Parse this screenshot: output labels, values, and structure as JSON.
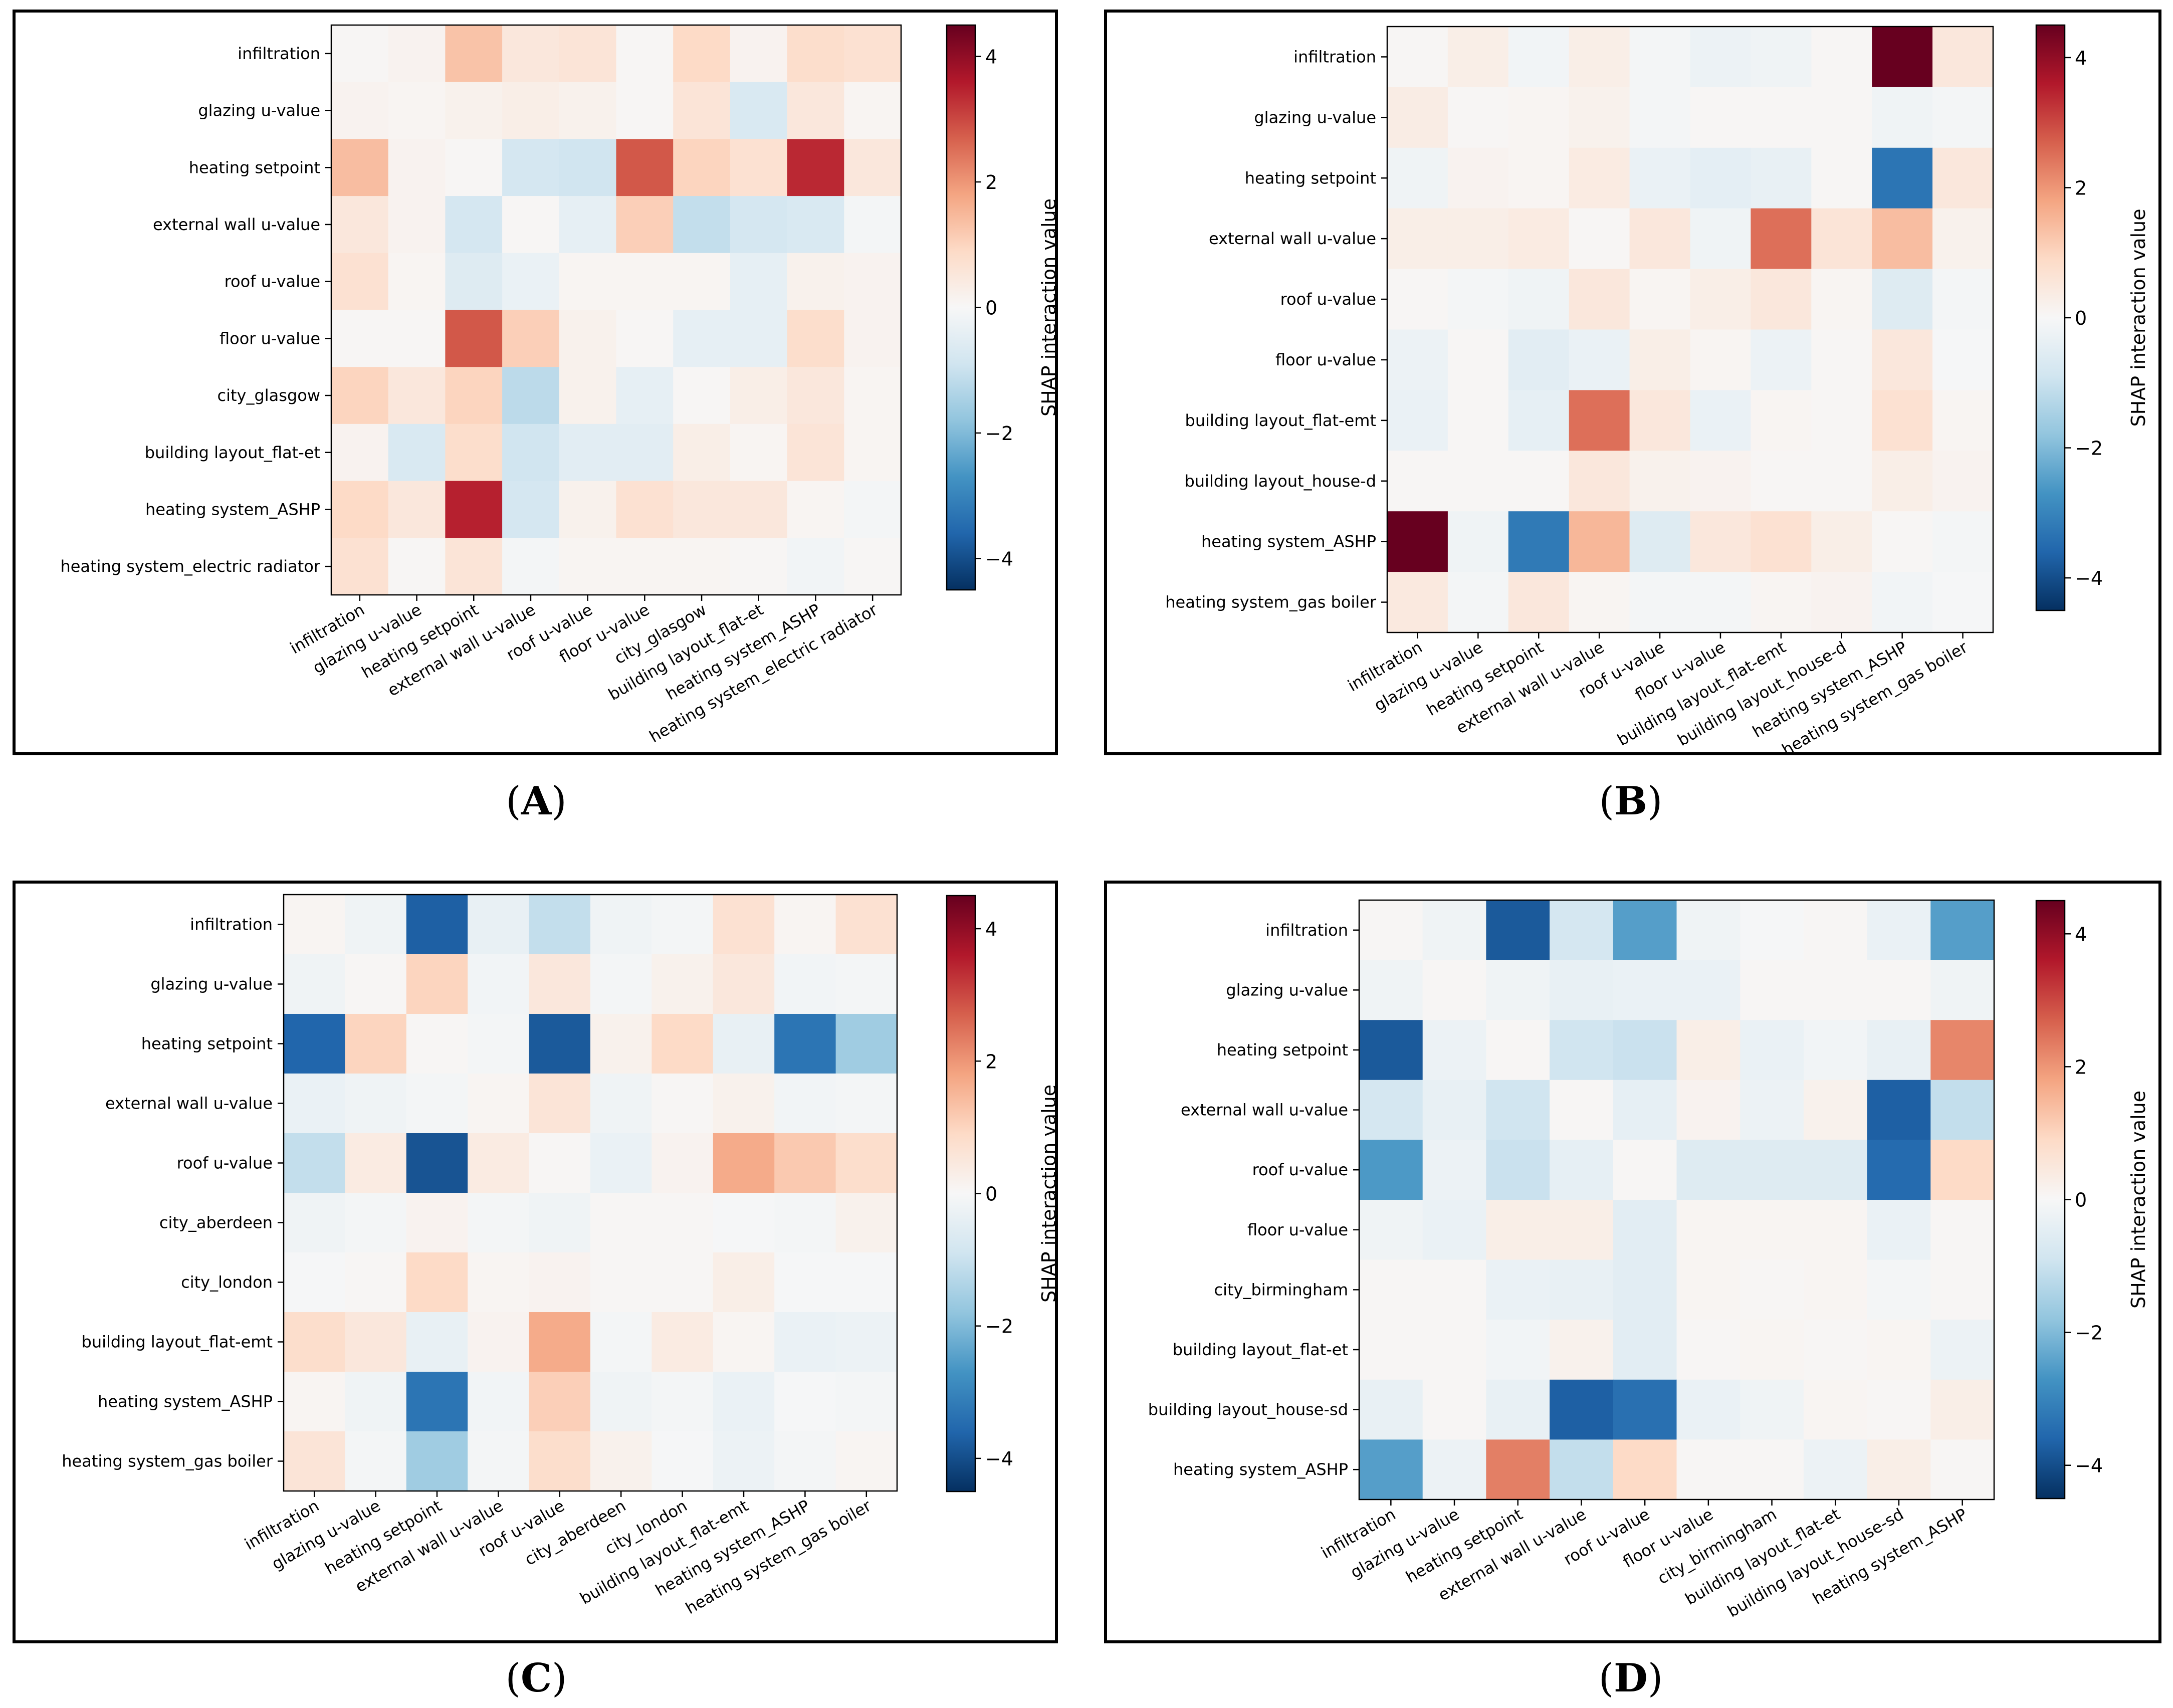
{
  "colorbar": {
    "label": "SHAP interaction value",
    "vmin": -4.5,
    "vmax": 4.5,
    "ticks": [
      -4,
      -2,
      0,
      2,
      4
    ],
    "tick_labels": [
      "−4",
      "−2",
      "0",
      "2",
      "4"
    ],
    "colormap": [
      "#053061",
      "#2166ac",
      "#4393c3",
      "#92c5de",
      "#d1e5f0",
      "#f7f7f7",
      "#fddbc7",
      "#f4a582",
      "#d6604d",
      "#b2182b",
      "#67001f"
    ]
  },
  "chart_data": [
    {
      "type": "heatmap",
      "panel_label": "A",
      "caption_parts": [
        "(",
        "A",
        ")"
      ],
      "features": [
        "infiltration",
        "glazing u-value",
        "heating setpoint",
        "external wall u-value",
        "roof u-value",
        "floor u-value",
        "city_glasgow",
        "building layout_flat-et",
        "heating system_ASHP",
        "heating system_electric radiator"
      ],
      "values": [
        [
          0.05,
          0.15,
          1.3,
          0.5,
          0.6,
          0.05,
          0.9,
          0.15,
          0.8,
          0.7
        ],
        [
          0.15,
          0.1,
          0.2,
          0.3,
          0.2,
          0.05,
          0.6,
          -0.7,
          0.5,
          0.1
        ],
        [
          1.4,
          0.15,
          0.05,
          -0.8,
          -0.9,
          2.8,
          1.0,
          0.7,
          3.4,
          0.5
        ],
        [
          0.5,
          0.15,
          -0.8,
          0.05,
          -0.4,
          1.1,
          -1.1,
          -0.8,
          -0.7,
          -0.1
        ],
        [
          0.7,
          0.1,
          -0.6,
          -0.3,
          0.1,
          0.1,
          0.1,
          -0.4,
          0.2,
          0.15
        ],
        [
          0.05,
          0.05,
          2.8,
          1.1,
          0.2,
          0.05,
          -0.4,
          -0.4,
          0.8,
          0.15
        ],
        [
          1.0,
          0.5,
          1.0,
          -1.2,
          0.2,
          -0.4,
          0.05,
          0.3,
          0.5,
          0.1
        ],
        [
          0.15,
          -0.7,
          0.8,
          -0.9,
          -0.5,
          -0.5,
          0.3,
          0.1,
          0.6,
          0.1
        ],
        [
          0.9,
          0.5,
          3.5,
          -0.8,
          0.2,
          0.7,
          0.5,
          0.5,
          0.1,
          -0.1
        ],
        [
          0.7,
          0.05,
          0.6,
          -0.1,
          0.1,
          0.1,
          0.1,
          0.05,
          -0.15,
          0.05
        ]
      ]
    },
    {
      "type": "heatmap",
      "panel_label": "B",
      "caption_parts": [
        "(",
        "B",
        ")"
      ],
      "features": [
        "infiltration",
        "glazing u-value",
        "heating setpoint",
        "external wall u-value",
        "roof u-value",
        "floor u-value",
        "building layout_flat-emt",
        "building layout_house-d",
        "heating system_ASHP",
        "heating system_gas boiler"
      ],
      "values": [
        [
          0.05,
          0.3,
          -0.15,
          0.3,
          -0.1,
          -0.25,
          -0.2,
          0.05,
          4.5,
          0.5
        ],
        [
          0.35,
          0.05,
          0.1,
          0.2,
          -0.1,
          0.05,
          0.05,
          0.05,
          -0.2,
          -0.1
        ],
        [
          -0.2,
          0.15,
          0.1,
          0.4,
          -0.3,
          -0.45,
          -0.35,
          0.05,
          -3.3,
          0.5
        ],
        [
          0.3,
          0.3,
          0.4,
          0.05,
          0.5,
          -0.2,
          2.5,
          0.6,
          1.4,
          0.2
        ],
        [
          0.05,
          -0.1,
          -0.2,
          0.5,
          0.1,
          0.3,
          0.5,
          0.1,
          -0.6,
          -0.1
        ],
        [
          -0.25,
          0.05,
          -0.5,
          -0.3,
          0.3,
          0.1,
          -0.25,
          0.05,
          0.5,
          -0.05
        ],
        [
          -0.3,
          0.05,
          -0.4,
          2.5,
          0.5,
          -0.3,
          0.1,
          0.05,
          0.7,
          0.1
        ],
        [
          0.05,
          0.05,
          0.05,
          0.5,
          0.2,
          0.15,
          0.05,
          0.05,
          0.3,
          0.15
        ],
        [
          4.5,
          -0.2,
          -3.2,
          1.5,
          -0.6,
          0.5,
          0.7,
          0.3,
          0.05,
          -0.1
        ],
        [
          0.45,
          -0.1,
          0.5,
          0.1,
          -0.1,
          -0.1,
          0.1,
          0.15,
          -0.15,
          -0.05
        ]
      ]
    },
    {
      "type": "heatmap",
      "panel_label": "C",
      "caption_parts": [
        "(",
        "C",
        ")"
      ],
      "features": [
        "infiltration",
        "glazing u-value",
        "heating setpoint",
        "external wall u-value",
        "roof u-value",
        "city_aberdeen",
        "city_london",
        "building layout_flat-emt",
        "heating system_ASHP",
        "heating system_gas boiler"
      ],
      "values": [
        [
          0.1,
          -0.2,
          -3.7,
          -0.35,
          -1.1,
          -0.2,
          -0.1,
          0.7,
          0.1,
          0.7
        ],
        [
          -0.2,
          0.05,
          1.0,
          -0.15,
          0.5,
          -0.1,
          0.2,
          0.5,
          -0.15,
          -0.1
        ],
        [
          -3.6,
          1.0,
          0.05,
          -0.1,
          -3.8,
          0.2,
          0.9,
          -0.35,
          -3.3,
          -1.6
        ],
        [
          -0.3,
          -0.2,
          -0.1,
          0.1,
          0.6,
          -0.2,
          0.05,
          0.2,
          -0.15,
          -0.1
        ],
        [
          -1.1,
          0.4,
          -3.9,
          0.4,
          0.05,
          -0.3,
          0.15,
          1.7,
          1.2,
          0.8
        ],
        [
          -0.2,
          -0.1,
          0.15,
          -0.1,
          -0.2,
          0.05,
          0.05,
          -0.05,
          -0.1,
          0.2
        ],
        [
          -0.05,
          0.05,
          0.9,
          0.1,
          0.15,
          0.05,
          0.05,
          0.3,
          -0.05,
          -0.05
        ],
        [
          0.8,
          0.5,
          -0.35,
          0.15,
          1.7,
          -0.1,
          0.4,
          0.1,
          -0.3,
          -0.25
        ],
        [
          0.1,
          -0.2,
          -3.3,
          -0.15,
          1.1,
          -0.2,
          -0.1,
          -0.3,
          -0.05,
          -0.1
        ],
        [
          0.6,
          -0.1,
          -1.6,
          -0.1,
          0.8,
          0.2,
          -0.05,
          -0.25,
          -0.1,
          0.1
        ]
      ]
    },
    {
      "type": "heatmap",
      "panel_label": "D",
      "caption_parts": [
        "(",
        "D",
        ")"
      ],
      "features": [
        "infiltration",
        "glazing u-value",
        "heating setpoint",
        "external wall u-value",
        "roof u-value",
        "floor u-value",
        "city_birmingham",
        "building layout_flat-et",
        "building layout_house-sd",
        "heating system_ASHP"
      ],
      "values": [
        [
          0.05,
          -0.2,
          -3.8,
          -0.8,
          -2.5,
          -0.2,
          -0.05,
          0.05,
          -0.3,
          -2.5
        ],
        [
          -0.2,
          0.05,
          -0.2,
          -0.35,
          -0.3,
          -0.3,
          0.05,
          0.05,
          0.05,
          -0.2
        ],
        [
          -3.8,
          -0.25,
          0.05,
          -0.9,
          -1.0,
          0.3,
          -0.3,
          -0.15,
          -0.35,
          2.2
        ],
        [
          -0.8,
          -0.35,
          -0.9,
          0.05,
          -0.4,
          0.15,
          -0.25,
          0.2,
          -3.7,
          -1.1
        ],
        [
          -2.6,
          -0.25,
          -1.0,
          -0.4,
          0.05,
          -0.6,
          -0.6,
          -0.6,
          -3.5,
          0.9
        ],
        [
          -0.2,
          -0.3,
          0.3,
          0.3,
          -0.5,
          0.1,
          0.1,
          0.1,
          -0.3,
          0.05
        ],
        [
          0.05,
          0.05,
          -0.3,
          -0.35,
          -0.5,
          0.1,
          0.05,
          0.1,
          -0.1,
          0.05
        ],
        [
          0.05,
          0.05,
          -0.15,
          0.2,
          -0.5,
          0.05,
          0.1,
          0.05,
          0.1,
          -0.25
        ],
        [
          -0.35,
          0.05,
          -0.35,
          -3.7,
          -3.4,
          -0.3,
          -0.2,
          0.1,
          0.05,
          0.3
        ],
        [
          -2.5,
          -0.25,
          2.3,
          -1.1,
          0.9,
          0.05,
          0.05,
          -0.25,
          0.3,
          0.05
        ]
      ]
    }
  ]
}
